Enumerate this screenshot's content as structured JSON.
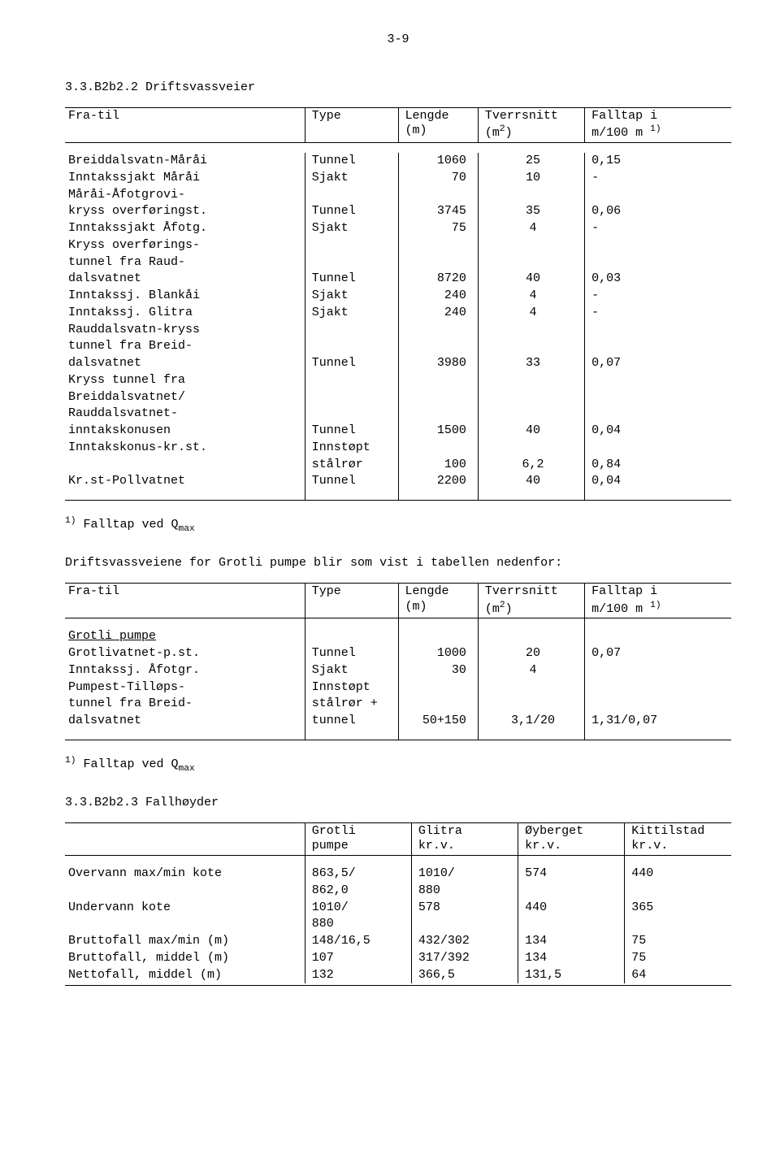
{
  "page_number": "3-9",
  "section1": {
    "heading": "3.3.B2b2.2  Driftsvassveier",
    "headers": {
      "c0": "Fra-til",
      "c1": "Type",
      "c2": "Lengde (m)",
      "c3_l1": "Tverrsnitt",
      "c3_l2": "(m",
      "c3_sup": "2",
      "c3_l2b": ")",
      "c4_l1": "Falltap i",
      "c4_l2a": "m/100 m ",
      "c4_sup": "1)"
    },
    "rows": [
      {
        "a": "Breiddalsvatn-Måråi",
        "b": "Tunnel",
        "c": "1060",
        "d": "25",
        "e": "0,15"
      },
      {
        "a": "Inntakssjakt Måråi",
        "b": "Sjakt",
        "c": "70",
        "d": "10",
        "e": "-"
      },
      {
        "a": "Måråi-Åfotgrovi-",
        "b": "",
        "c": "",
        "d": "",
        "e": ""
      },
      {
        "a": "kryss overføringst.",
        "b": "Tunnel",
        "c": "3745",
        "d": "35",
        "e": "0,06"
      },
      {
        "a": "Inntakssjakt Åfotg.",
        "b": "Sjakt",
        "c": "75",
        "d": "4",
        "e": "-"
      },
      {
        "a": "Kryss overførings-",
        "b": "",
        "c": "",
        "d": "",
        "e": ""
      },
      {
        "a": "tunnel fra Raud-",
        "b": "",
        "c": "",
        "d": "",
        "e": ""
      },
      {
        "a": "dalsvatnet",
        "b": "Tunnel",
        "c": "8720",
        "d": "40",
        "e": "0,03"
      },
      {
        "a": "Inntakssj. Blankåi",
        "b": "Sjakt",
        "c": "240",
        "d": "4",
        "e": "-"
      },
      {
        "a": "Inntakssj. Glitra",
        "b": "Sjakt",
        "c": "240",
        "d": "4",
        "e": "-"
      },
      {
        "a": "Rauddalsvatn-kryss",
        "b": "",
        "c": "",
        "d": "",
        "e": ""
      },
      {
        "a": "tunnel fra Breid-",
        "b": "",
        "c": "",
        "d": "",
        "e": ""
      },
      {
        "a": "dalsvatnet",
        "b": "Tunnel",
        "c": "3980",
        "d": "33",
        "e": "0,07"
      },
      {
        "a": "Kryss tunnel fra",
        "b": "",
        "c": "",
        "d": "",
        "e": ""
      },
      {
        "a": "Breiddalsvatnet/",
        "b": "",
        "c": "",
        "d": "",
        "e": ""
      },
      {
        "a": "Rauddalsvatnet-",
        "b": "",
        "c": "",
        "d": "",
        "e": ""
      },
      {
        "a": "inntakskonusen",
        "b": "Tunnel",
        "c": "1500",
        "d": "40",
        "e": "0,04"
      },
      {
        "a": "Inntakskonus-kr.st.",
        "b": "Innstøpt",
        "c": "",
        "d": "",
        "e": ""
      },
      {
        "a": "",
        "b": "stålrør",
        "c": "100",
        "d": "6,2",
        "e": "0,84"
      },
      {
        "a": "Kr.st-Pollvatnet",
        "b": "Tunnel",
        "c": "2200",
        "d": "40",
        "e": "0,04"
      }
    ],
    "footnote_sup": "1)",
    "footnote_text": " Falltap ved Q",
    "footnote_sub": "max"
  },
  "intro2": "Driftsvassveiene for Grotli pumpe blir som vist i tabellen nedenfor:",
  "section2": {
    "headers": {
      "c0": "Fra-til",
      "c1": "Type",
      "c2": "Lengde (m)",
      "c3_l1": "Tverrsnitt",
      "c3_l2a": "(m",
      "c3_sup": "2",
      "c3_l2b": ")",
      "c4_l1": "Falltap i",
      "c4_l2a": "m/100 m ",
      "c4_sup": "1)"
    },
    "grouplabel": "Grotli pumpe",
    "rows": [
      {
        "a": "Grotlivatnet-p.st.",
        "b": "Tunnel",
        "c": "1000",
        "d": "20",
        "e": "0,07"
      },
      {
        "a": "Inntakssj. Åfotgr.",
        "b": "Sjakt",
        "c": "30",
        "d": "4",
        "e": ""
      },
      {
        "a": "Pumpest-Tilløps-",
        "b": "Innstøpt",
        "c": "",
        "d": "",
        "e": ""
      },
      {
        "a": "tunnel fra Breid-",
        "b": "stålrør +",
        "c": "",
        "d": "",
        "e": ""
      },
      {
        "a": "dalsvatnet",
        "b": "tunnel",
        "c": "50+150",
        "d": "3,1/20",
        "e": "1,31/0,07"
      }
    ],
    "footnote_sup": "1)",
    "footnote_text": " Falltap ved Q",
    "footnote_sub": "max"
  },
  "section3": {
    "heading": "3.3.B2b2.3  Fallhøyder",
    "headers": {
      "c1_l1": "Grotli",
      "c1_l2": "pumpe",
      "c2_l1": "Glitra",
      "c2_l2": "kr.v.",
      "c3_l1": "Øyberget",
      "c3_l2": "kr.v.",
      "c4_l1": "Kittilstad",
      "c4_l2": "kr.v."
    },
    "rows": [
      {
        "a": "Overvann max/min kote",
        "b": "863,5/",
        "c": "1010/",
        "d": "574",
        "e": "440"
      },
      {
        "a": "",
        "b": "862,0",
        "c": "880",
        "d": "",
        "e": ""
      },
      {
        "a": "Undervann kote",
        "b": "1010/",
        "c": "578",
        "d": "440",
        "e": "365"
      },
      {
        "a": "",
        "b": "880",
        "c": "",
        "d": "",
        "e": ""
      },
      {
        "a": "Bruttofall max/min (m)",
        "b": "148/16,5",
        "c": "432/302",
        "d": "134",
        "e": "75"
      },
      {
        "a": "Bruttofall, middel (m)",
        "b": "107",
        "c": "317/392",
        "d": "134",
        "e": "75"
      },
      {
        "a": "Nettofall, middel (m)",
        "b": "132",
        "c": "366,5",
        "d": "131,5",
        "e": "64"
      }
    ]
  }
}
